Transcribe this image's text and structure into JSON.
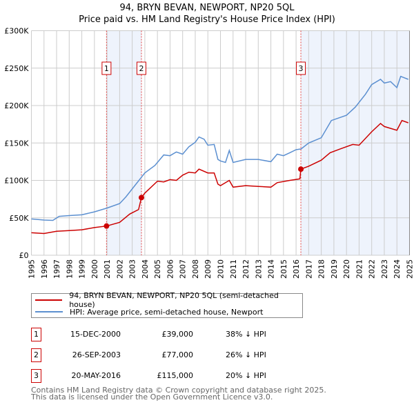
{
  "title": "94, BRYN BEVAN, NEWPORT, NP20 5QL",
  "subtitle": "Price paid vs. HM Land Registry's House Price Index (HPI)",
  "colors": {
    "property": "#cc0000",
    "hpi": "#5b8fd0",
    "shade": "#eef3fc"
  },
  "chart_data": {
    "type": "line",
    "ylim": [
      0,
      300000
    ],
    "xlim": [
      1995,
      2025
    ],
    "yticks": [
      {
        "v": 0,
        "label": "£0"
      },
      {
        "v": 50000,
        "label": "£50K"
      },
      {
        "v": 100000,
        "label": "£100K"
      },
      {
        "v": 150000,
        "label": "£150K"
      },
      {
        "v": 200000,
        "label": "£200K"
      },
      {
        "v": 250000,
        "label": "£250K"
      },
      {
        "v": 300000,
        "label": "£300K"
      }
    ],
    "xticks": [
      "1995",
      "1996",
      "1997",
      "1998",
      "1999",
      "2000",
      "2001",
      "2002",
      "2003",
      "2004",
      "2005",
      "2006",
      "2007",
      "2008",
      "2009",
      "2010",
      "2011",
      "2012",
      "2013",
      "2014",
      "2015",
      "2016",
      "2017",
      "2018",
      "2019",
      "2020",
      "2021",
      "2022",
      "2023",
      "2024",
      "2025"
    ],
    "grid": true,
    "series": [
      {
        "name": "94, BRYN BEVAN, NEWPORT, NP20 5QL (semi-detached house)",
        "color": "#cc0000",
        "points": [
          [
            1995,
            30000
          ],
          [
            1996,
            29000
          ],
          [
            1997,
            32000
          ],
          [
            1998,
            33000
          ],
          [
            1999,
            34000
          ],
          [
            2000,
            37000
          ],
          [
            2000.96,
            39000
          ],
          [
            2002,
            44000
          ],
          [
            2002.8,
            55000
          ],
          [
            2003.5,
            61000
          ],
          [
            2003.73,
            77000
          ],
          [
            2004,
            83000
          ],
          [
            2005,
            99000
          ],
          [
            2005.5,
            98000
          ],
          [
            2006,
            101000
          ],
          [
            2006.5,
            100000
          ],
          [
            2007,
            107000
          ],
          [
            2007.5,
            111000
          ],
          [
            2008,
            110000
          ],
          [
            2008.3,
            115000
          ],
          [
            2009,
            110000
          ],
          [
            2009.5,
            110000
          ],
          [
            2009.8,
            95000
          ],
          [
            2010,
            93000
          ],
          [
            2010.7,
            100000
          ],
          [
            2011,
            91000
          ],
          [
            2012,
            93000
          ],
          [
            2013,
            92000
          ],
          [
            2014,
            91000
          ],
          [
            2014.5,
            97000
          ],
          [
            2015.5,
            100000
          ],
          [
            2016.3,
            102000
          ],
          [
            2016.38,
            115000
          ],
          [
            2017,
            119000
          ],
          [
            2018,
            127000
          ],
          [
            2018.7,
            137000
          ],
          [
            2019.5,
            142000
          ],
          [
            2020.5,
            148000
          ],
          [
            2021,
            147000
          ],
          [
            2022,
            165000
          ],
          [
            2022.7,
            176000
          ],
          [
            2023,
            172000
          ],
          [
            2024,
            167000
          ],
          [
            2024.4,
            180000
          ],
          [
            2024.9,
            177000
          ]
        ]
      },
      {
        "name": "HPI: Average price, semi-detached house, Newport",
        "color": "#5b8fd0",
        "points": [
          [
            1995,
            48500
          ],
          [
            1996,
            47000
          ],
          [
            1996.7,
            46500
          ],
          [
            1997.2,
            52000
          ],
          [
            1998,
            53000
          ],
          [
            1999,
            54000
          ],
          [
            2000,
            58000
          ],
          [
            2001,
            63000
          ],
          [
            2002,
            69000
          ],
          [
            2002.5,
            78000
          ],
          [
            2003.3,
            95000
          ],
          [
            2004,
            110000
          ],
          [
            2004.8,
            120000
          ],
          [
            2005.5,
            134000
          ],
          [
            2006,
            133000
          ],
          [
            2006.5,
            138000
          ],
          [
            2007,
            135000
          ],
          [
            2007.5,
            145000
          ],
          [
            2008,
            151000
          ],
          [
            2008.3,
            158000
          ],
          [
            2008.7,
            155000
          ],
          [
            2009,
            147000
          ],
          [
            2009.5,
            148000
          ],
          [
            2009.8,
            128000
          ],
          [
            2010,
            126000
          ],
          [
            2010.4,
            124000
          ],
          [
            2010.7,
            140000
          ],
          [
            2011,
            124000
          ],
          [
            2012,
            128000
          ],
          [
            2013,
            128000
          ],
          [
            2014,
            125000
          ],
          [
            2014.5,
            135000
          ],
          [
            2015,
            133000
          ],
          [
            2015.5,
            137000
          ],
          [
            2016,
            141000
          ],
          [
            2016.4,
            142000
          ],
          [
            2017,
            150000
          ],
          [
            2018,
            157000
          ],
          [
            2018.8,
            180000
          ],
          [
            2020,
            187000
          ],
          [
            2020.7,
            198000
          ],
          [
            2021.5,
            215000
          ],
          [
            2022,
            228000
          ],
          [
            2022.7,
            235000
          ],
          [
            2023,
            230000
          ],
          [
            2023.5,
            232000
          ],
          [
            2024,
            224000
          ],
          [
            2024.3,
            239000
          ],
          [
            2024.9,
            235000
          ]
        ]
      }
    ],
    "sales": [
      {
        "n": "1",
        "x": 2000.96,
        "y": 39000
      },
      {
        "n": "2",
        "x": 2003.73,
        "y": 77000
      },
      {
        "n": "3",
        "x": 2016.38,
        "y": 115000
      }
    ],
    "legend": "below"
  },
  "legend": {
    "property": "94, BRYN BEVAN, NEWPORT, NP20 5QL (semi-detached house)",
    "hpi": "HPI: Average price, semi-detached house, Newport"
  },
  "transactions": [
    {
      "n": "1",
      "date": "15-DEC-2000",
      "price": "£39,000",
      "hpi": "38% ↓ HPI"
    },
    {
      "n": "2",
      "date": "26-SEP-2003",
      "price": "£77,000",
      "hpi": "26% ↓ HPI"
    },
    {
      "n": "3",
      "date": "20-MAY-2016",
      "price": "£115,000",
      "hpi": "20% ↓ HPI"
    }
  ],
  "footer": {
    "line1": "Contains HM Land Registry data © Crown copyright and database right 2025.",
    "line2": "This data is licensed under the Open Government Licence v3.0."
  }
}
